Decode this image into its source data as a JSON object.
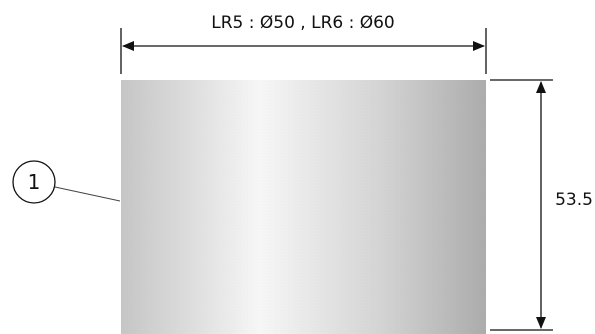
{
  "dimensions": {
    "width_label": "LR5 : Ø50 , LR6 : Ø60",
    "height_label": "53.5"
  },
  "callout": {
    "number": "1"
  },
  "colors": {
    "line": "#111111",
    "body_light": "#f4f4f4",
    "body_mid": "#c9c9c9",
    "body_dark": "#a9a9a9"
  }
}
